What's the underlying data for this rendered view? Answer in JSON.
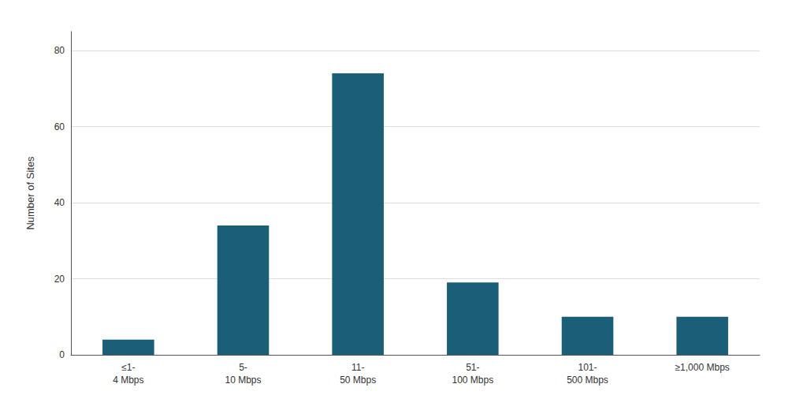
{
  "chart_data": {
    "type": "bar",
    "ylabel": "Number of Sites",
    "categories": [
      "≤1-\n4 Mbps",
      "5-\n10 Mbps",
      "11-\n50 Mbps",
      "51-\n100 Mbps",
      "101-\n500 Mbps",
      "≥1,000 Mbps"
    ],
    "values": [
      4,
      34,
      74,
      19,
      10,
      10
    ],
    "color": "#1a5e78",
    "ylim": [
      0,
      85
    ],
    "yticks": [
      0,
      20,
      40,
      60,
      80
    ],
    "grid": true
  }
}
